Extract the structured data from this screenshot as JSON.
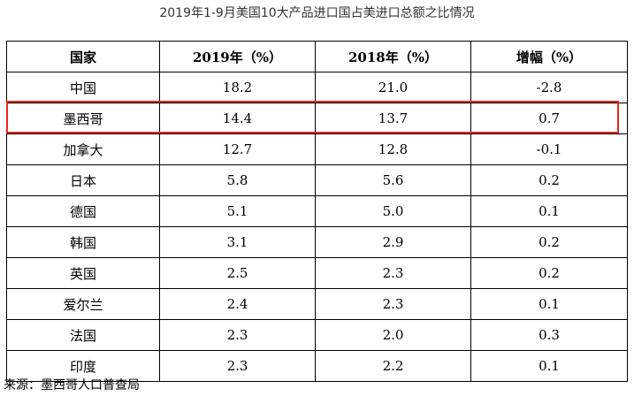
{
  "chart_data": {
    "type": "table",
    "title": "2019年1-9月美国10大产品进口国占美进口总额之比情况",
    "headers": [
      "国家",
      "2019年（%）",
      "2018年（%）",
      "增幅（%）"
    ],
    "rows": [
      [
        "中国",
        "18.2",
        "21.0",
        "-2.8"
      ],
      [
        "墨西哥",
        "14.4",
        "13.7",
        "0.7"
      ],
      [
        "加拿大",
        "12.7",
        "12.8",
        "-0.1"
      ],
      [
        "日本",
        "5.8",
        "5.6",
        "0.2"
      ],
      [
        "德国",
        "5.1",
        "5.0",
        "0.1"
      ],
      [
        "韩国",
        "3.1",
        "2.9",
        "0.2"
      ],
      [
        "英国",
        "2.5",
        "2.3",
        "0.2"
      ],
      [
        "爱尔兰",
        "2.4",
        "2.3",
        "0.1"
      ],
      [
        "法国",
        "2.3",
        "2.0",
        "0.3"
      ],
      [
        "印度",
        "2.3",
        "2.2",
        "0.1"
      ]
    ],
    "highlighted_row": "墨西哥",
    "highlight_color": "#e8271b",
    "source": "来源：墨西哥人口普查局"
  }
}
